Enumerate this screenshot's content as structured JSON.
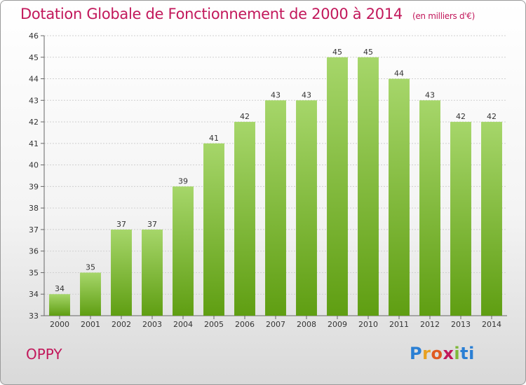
{
  "title": "Dotation Globale de Fonctionnement de 2000 à 2014",
  "unit_note": "(en milliers d'€)",
  "commune": "OPPY",
  "logo": "Proxiti",
  "colors": {
    "bar_light": "#a6d66a",
    "bar_dark": "#5f9e12",
    "title": "#c2185b"
  },
  "chart_data": {
    "type": "bar",
    "categories": [
      "2000",
      "2001",
      "2002",
      "2003",
      "2004",
      "2005",
      "2006",
      "2007",
      "2008",
      "2009",
      "2010",
      "2011",
      "2012",
      "2013",
      "2014"
    ],
    "values": [
      34,
      35,
      37,
      37,
      39,
      41,
      42,
      43,
      43,
      45,
      45,
      44,
      43,
      42,
      42
    ],
    "ylim": [
      33,
      46
    ],
    "yticks": [
      33,
      34,
      35,
      36,
      37,
      38,
      39,
      40,
      41,
      42,
      43,
      44,
      45,
      46
    ],
    "grid": true,
    "data_labels": true
  }
}
